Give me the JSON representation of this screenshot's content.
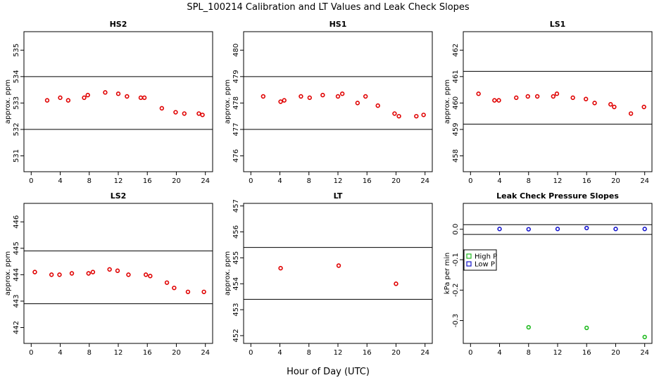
{
  "title": "SPL_100214  Calibration and LT Values and Leak Check Slopes",
  "xlabel": "Hour of Day (UTC)",
  "colors": {
    "points": "#e00000",
    "high_p": "#22bb22",
    "low_p": "#1515cc",
    "axis": "#000000"
  },
  "chart_data": [
    {
      "type": "scatter",
      "title": "HS2",
      "ylabel": "approx. ppm",
      "xlim": [
        -1,
        25
      ],
      "ylim": [
        530.4,
        535.7
      ],
      "xticks": [
        0,
        4,
        8,
        12,
        16,
        20,
        24
      ],
      "yticks": [
        531,
        532,
        533,
        534,
        535
      ],
      "hlines": [
        534.0,
        532.0
      ],
      "x": [
        2.2,
        4.0,
        5.1,
        7.3,
        7.8,
        10.2,
        12.0,
        13.2,
        15.1,
        15.6,
        18.0,
        19.9,
        21.1,
        23.1,
        23.6
      ],
      "y": [
        533.1,
        533.2,
        533.1,
        533.2,
        533.3,
        533.4,
        533.35,
        533.25,
        533.2,
        533.2,
        532.8,
        532.65,
        532.6,
        532.6,
        532.55
      ]
    },
    {
      "type": "scatter",
      "title": "HS1",
      "ylabel": "approx. ppm",
      "xlim": [
        -1,
        25
      ],
      "ylim": [
        475.4,
        480.7
      ],
      "xticks": [
        0,
        4,
        8,
        12,
        16,
        20,
        24
      ],
      "yticks": [
        476,
        477,
        478,
        479,
        480
      ],
      "hlines": [
        479.0,
        477.0
      ],
      "x": [
        1.7,
        4.1,
        4.6,
        6.9,
        8.1,
        9.9,
        12.0,
        12.6,
        14.7,
        15.8,
        17.5,
        19.8,
        20.4,
        22.8,
        23.8
      ],
      "y": [
        478.25,
        478.05,
        478.1,
        478.25,
        478.2,
        478.3,
        478.25,
        478.35,
        478.0,
        478.25,
        477.9,
        477.6,
        477.5,
        477.5,
        477.55
      ]
    },
    {
      "type": "scatter",
      "title": "LS1",
      "ylabel": "approx. ppm",
      "xlim": [
        -1,
        25
      ],
      "ylim": [
        457.4,
        462.7
      ],
      "xticks": [
        0,
        4,
        8,
        12,
        16,
        20,
        24
      ],
      "yticks": [
        458,
        459,
        460,
        461,
        462
      ],
      "hlines": [
        461.2,
        459.2
      ],
      "x": [
        1.1,
        3.3,
        3.9,
        6.3,
        7.9,
        9.2,
        11.4,
        11.9,
        14.1,
        15.9,
        17.1,
        19.3,
        19.8,
        22.1,
        23.9
      ],
      "y": [
        460.35,
        460.1,
        460.1,
        460.2,
        460.25,
        460.25,
        460.25,
        460.35,
        460.2,
        460.15,
        460.0,
        459.95,
        459.85,
        459.6,
        459.85
      ]
    },
    {
      "type": "scatter",
      "title": "LS2",
      "ylabel": "approx. ppm",
      "xlim": [
        -1,
        25
      ],
      "ylim": [
        441.4,
        446.7
      ],
      "xticks": [
        0,
        4,
        8,
        12,
        16,
        20,
        24
      ],
      "yticks": [
        442,
        443,
        444,
        445,
        446
      ],
      "hlines": [
        444.9,
        442.9
      ],
      "x": [
        0.5,
        2.8,
        3.9,
        5.6,
        7.9,
        8.5,
        10.8,
        11.9,
        13.4,
        15.8,
        16.4,
        18.7,
        19.7,
        21.6,
        23.8
      ],
      "y": [
        444.1,
        444.0,
        444.0,
        444.05,
        444.05,
        444.1,
        444.2,
        444.15,
        444.0,
        444.0,
        443.95,
        443.7,
        443.5,
        443.35,
        443.35
      ]
    },
    {
      "type": "scatter",
      "title": "LT",
      "ylabel": "approx. ppm",
      "xlim": [
        -1,
        25
      ],
      "ylim": [
        451.7,
        457.1
      ],
      "xticks": [
        0,
        4,
        8,
        12,
        16,
        20,
        24
      ],
      "yticks": [
        452,
        453,
        454,
        455,
        456,
        457
      ],
      "hlines": [
        455.4,
        453.4
      ],
      "x": [
        4.1,
        12.1,
        20.0
      ],
      "y": [
        454.6,
        454.7,
        454.0
      ]
    },
    {
      "type": "scatter",
      "title": "Leak Check Pressure Slopes",
      "ylabel": "kPa per min",
      "xlim": [
        -1,
        25
      ],
      "ylim": [
        -0.375,
        0.085
      ],
      "xticks": [
        0,
        4,
        8,
        12,
        16,
        20,
        24
      ],
      "yticks": [
        0.0,
        -0.1,
        -0.2,
        -0.3
      ],
      "hlines": [
        0.015,
        -0.017
      ],
      "legend": {
        "placement": "left",
        "entries": [
          "High P",
          "Low P"
        ]
      },
      "series": [
        {
          "name": "High P",
          "x": [
            8.0,
            16.0,
            24.0
          ],
          "y": [
            -0.322,
            -0.324,
            -0.354
          ]
        },
        {
          "name": "Low P",
          "x": [
            4.0,
            8.0,
            12.0,
            16.0,
            20.0,
            24.0
          ],
          "y": [
            0.001,
            0.0,
            0.001,
            0.004,
            0.001,
            0.001
          ]
        }
      ]
    }
  ]
}
